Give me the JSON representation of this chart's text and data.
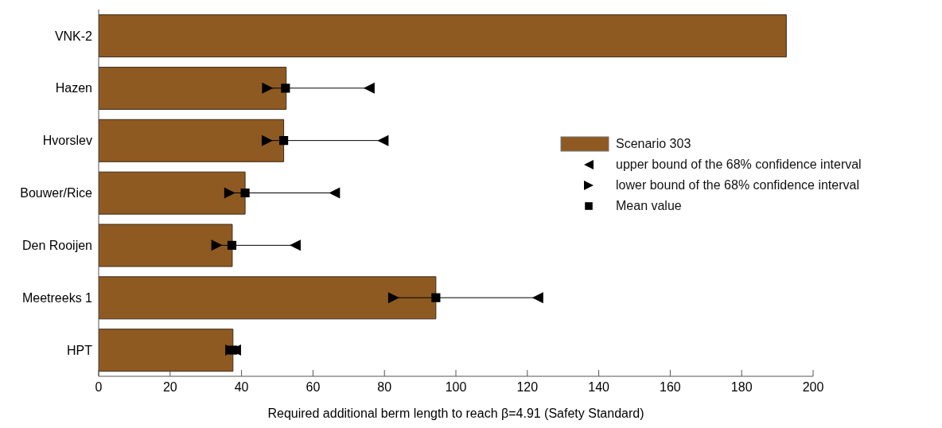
{
  "chart_data": {
    "type": "bar",
    "orientation": "horizontal",
    "xlabel": "Required additional berm length to reach β=4.91 (Safety Standard)",
    "categories": [
      "VNK-2",
      "Hazen",
      "Hvorslev",
      "Bouwer/Rice",
      "Den Rooijen",
      "Meetreeks 1",
      "HPT"
    ],
    "xlim": [
      0,
      200
    ],
    "xticks": [
      0,
      20,
      40,
      60,
      80,
      100,
      120,
      140,
      160,
      180,
      200
    ],
    "legend": "right",
    "series": [
      {
        "name": "Scenario 303",
        "color": "#8f5a21",
        "values": [
          192.5,
          52.5,
          51.8,
          41.0,
          37.4,
          94.4,
          37.6
        ]
      },
      {
        "name": "upper bound of the 68% confidence interval",
        "type": "scatter",
        "marker": "triangle",
        "color": "#000000",
        "values": [
          null,
          75.7,
          79.6,
          66.0,
          55.0,
          122.9,
          38.3
        ]
      },
      {
        "name": "lower bound of the 68% confidence interval",
        "type": "scatter",
        "marker": "triangle",
        "color": "#000000",
        "values": [
          null,
          47.3,
          47.2,
          36.7,
          33.1,
          82.6,
          37.0
        ]
      },
      {
        "name": "Mean value",
        "type": "scatter",
        "marker": "square",
        "color": "#000000",
        "values": [
          null,
          52.3,
          51.8,
          41.0,
          37.3,
          94.4,
          37.6
        ]
      }
    ]
  }
}
